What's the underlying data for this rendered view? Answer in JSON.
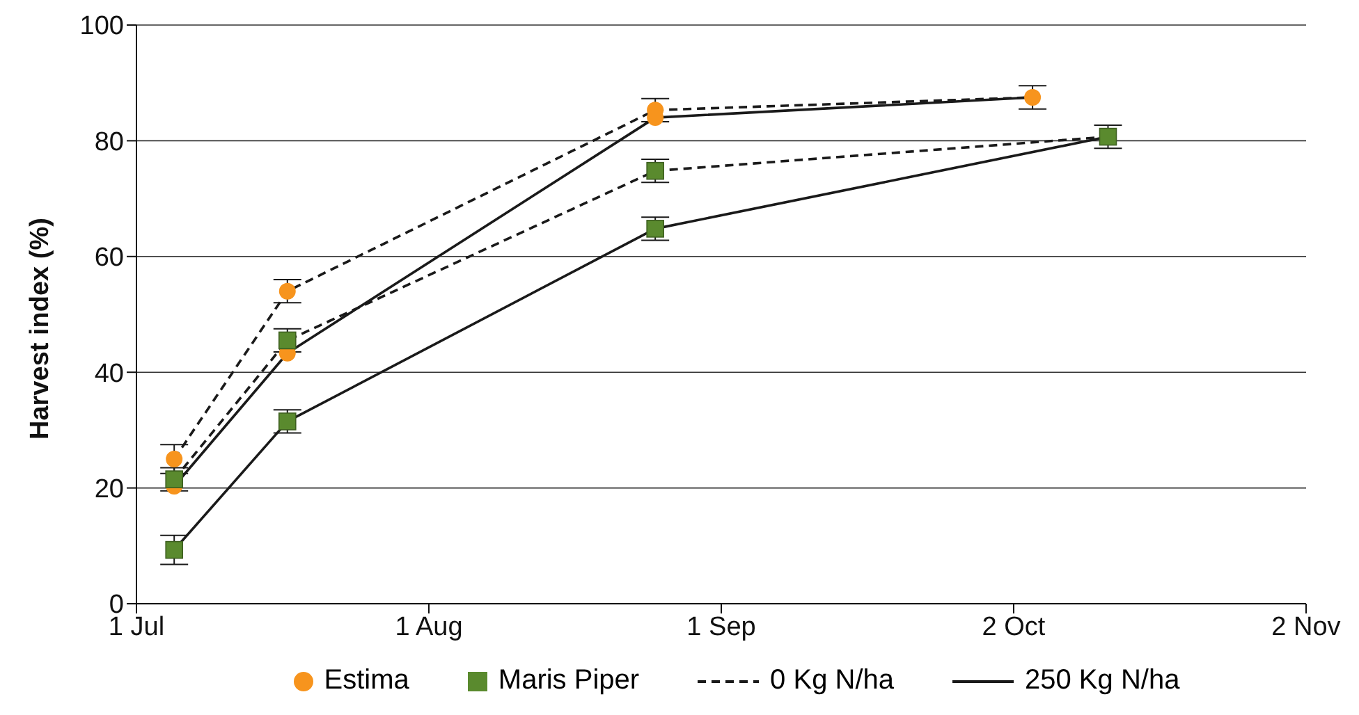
{
  "chart_data": {
    "type": "line",
    "ylabel": "Harvest index (%)",
    "xlim": [
      "--07-01",
      "--11-02"
    ],
    "xticks": [
      {
        "value": "--07-01",
        "label": "1 Jul"
      },
      {
        "value": "--08-01",
        "label": "1 Aug"
      },
      {
        "value": "--09-01",
        "label": "1 Sep"
      },
      {
        "value": "--10-02",
        "label": "2 Oct"
      },
      {
        "value": "--11-02",
        "label": "2 Nov"
      }
    ],
    "ylim": [
      0,
      100
    ],
    "yticks": [
      0,
      20,
      40,
      60,
      80,
      100
    ],
    "grid": "y",
    "legend": "bottom",
    "series": [
      {
        "name": "Estima",
        "type": "scatter",
        "marker": "circle",
        "color": "#f7941d",
        "x": [
          "--07-05",
          "--07-05",
          "--07-17",
          "--07-17",
          "--08-25",
          "--08-25",
          "--10-04"
        ],
        "values": [
          25,
          20.3,
          54,
          43.3,
          85.3,
          84,
          87.5
        ],
        "errors": [
          2.5,
          null,
          2,
          null,
          2,
          null,
          2
        ]
      },
      {
        "name": "Maris Piper",
        "type": "scatter",
        "marker": "square",
        "color": "#5a8a2e",
        "x": [
          "--07-05",
          "--07-05",
          "--07-17",
          "--07-17",
          "--08-25",
          "--08-25",
          "--10-12"
        ],
        "values": [
          21.5,
          9.3,
          45.5,
          31.5,
          74.8,
          64.8,
          80.7
        ],
        "errors": [
          2,
          2.5,
          2,
          2,
          2,
          2,
          2
        ]
      },
      {
        "name": "0 Kg N/ha",
        "line_style": "dashed",
        "marker": "none",
        "color": "#1a1a1a",
        "x": [
          "--07-05",
          "--07-17",
          "--08-25",
          "--10-04"
        ],
        "values": [
          25,
          54,
          85.3,
          87.5
        ]
      },
      {
        "line_style": "dashed",
        "marker": "none",
        "color": "#1a1a1a",
        "x": [
          "--07-05",
          "--07-17",
          "--08-25",
          "--10-12"
        ],
        "values": [
          21.5,
          45.5,
          74.8,
          80.7
        ]
      },
      {
        "name": "250 Kg N/ha",
        "line_style": "solid",
        "marker": "none",
        "color": "#1a1a1a",
        "x": [
          "--07-05",
          "--07-17",
          "--08-25",
          "--10-04"
        ],
        "values": [
          20.3,
          43.3,
          84,
          87.5
        ]
      },
      {
        "line_style": "solid",
        "marker": "none",
        "color": "#1a1a1a",
        "x": [
          "--07-05",
          "--07-17",
          "--08-25",
          "--10-12"
        ],
        "values": [
          9.3,
          31.5,
          64.8,
          80.7
        ]
      }
    ]
  }
}
